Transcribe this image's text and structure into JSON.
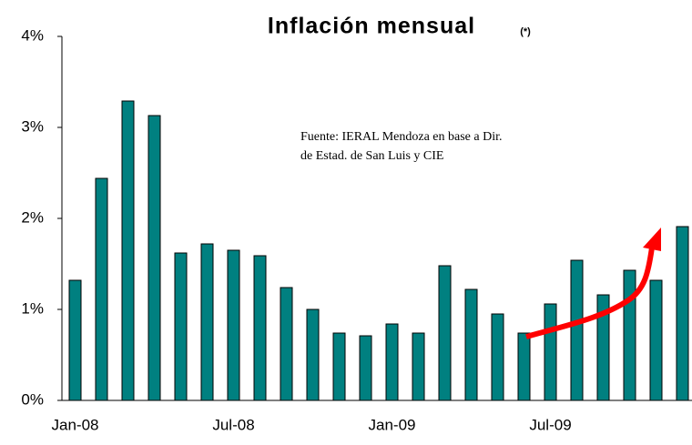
{
  "chart_data": {
    "type": "bar",
    "title": "Inflación mensual",
    "title_note": "(*)",
    "annotation": [
      "Fuente: IERAL Mendoza en base a Dir.",
      "de Estad. de San Luis y CIE"
    ],
    "categories": [
      "Jan-08",
      null,
      null,
      null,
      null,
      null,
      "Jul-08",
      null,
      null,
      null,
      null,
      null,
      "Jan-09",
      null,
      null,
      null,
      null,
      null,
      "Jul-09",
      null,
      null,
      null,
      null,
      null
    ],
    "values": [
      1.32,
      2.44,
      3.29,
      3.13,
      1.62,
      1.72,
      1.65,
      1.59,
      1.24,
      1.0,
      0.74,
      0.71,
      0.84,
      0.74,
      1.48,
      1.22,
      0.95,
      0.74,
      1.06,
      1.54,
      1.16,
      1.43,
      1.32,
      1.91
    ],
    "color": "#008080",
    "ylim": [
      0,
      4
    ],
    "yticks": [
      {
        "value": 0,
        "label": "0%"
      },
      {
        "value": 1,
        "label": "1%"
      },
      {
        "value": 2,
        "label": "2%"
      },
      {
        "value": 3,
        "label": "3%"
      },
      {
        "value": 4,
        "label": "4%"
      }
    ],
    "grid": false
  }
}
